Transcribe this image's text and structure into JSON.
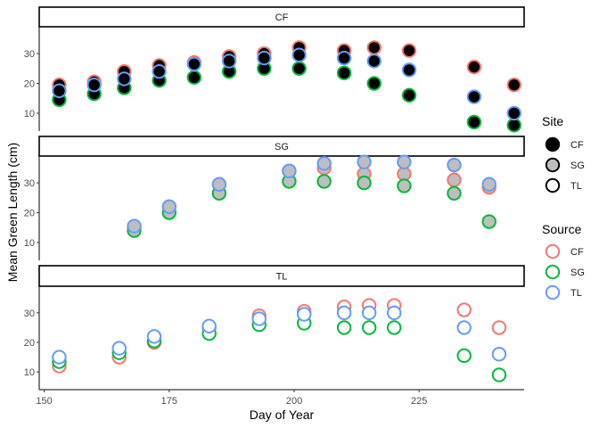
{
  "chart_data": {
    "type": "scatter",
    "title": "",
    "xlabel": "Day of Year",
    "ylabel": "Mean Green Length (cm)",
    "xlim": [
      149,
      246
    ],
    "x_ticks": [
      150,
      175,
      200,
      225
    ],
    "ylim": [
      4,
      39
    ],
    "y_ticks": [
      10,
      20,
      30
    ],
    "grid": false,
    "colors": {
      "CF": "#F8766D",
      "SG": "#00BA38",
      "TL": "#619CFF",
      "fill_CF": "#000000",
      "fill_SG": "#BEBEBE",
      "fill_TL": "#FFFFFF"
    },
    "legend_site": {
      "title": "Site",
      "items": [
        {
          "label": "CF",
          "fill": "#000000"
        },
        {
          "label": "SG",
          "fill": "#BEBEBE"
        },
        {
          "label": "TL",
          "fill": "#FFFFFF"
        }
      ]
    },
    "legend_source": {
      "title": "Source",
      "items": [
        {
          "label": "CF",
          "color": "#F8766D"
        },
        {
          "label": "SG",
          "color": "#00BA38"
        },
        {
          "label": "TL",
          "color": "#619CFF"
        }
      ]
    },
    "panels": [
      {
        "site": "CF",
        "strip_label": "CF",
        "x": [
          153,
          160,
          166,
          173,
          180,
          187,
          194,
          201,
          210,
          216,
          223,
          236,
          244
        ],
        "series": [
          {
            "source": "CF",
            "values": [
              19.5,
              20.5,
              24,
              26,
              27,
              29,
              30,
              32,
              31,
              32,
              31,
              25.5,
              19.5
            ]
          },
          {
            "source": "SG",
            "values": [
              14.5,
              16.5,
              18.5,
              21,
              22,
              24,
              25,
              25,
              23.5,
              20,
              16,
              7,
              6
            ]
          },
          {
            "source": "TL",
            "values": [
              17.5,
              19.5,
              21.5,
              24,
              26.5,
              27.5,
              28.5,
              29.5,
              28.5,
              27.5,
              24.5,
              15.5,
              10
            ]
          }
        ]
      },
      {
        "site": "SG",
        "strip_label": "SG",
        "x": [
          168,
          175,
          185,
          199,
          206,
          214,
          222,
          232,
          239
        ],
        "series": [
          {
            "source": "CF",
            "values": [
              15,
              22,
              29.5,
              34,
              35,
              33,
              33,
              31,
              28.5
            ]
          },
          {
            "source": "SG",
            "values": [
              14,
              20,
              26.5,
              30.5,
              30.5,
              30,
              29,
              26.5,
              17
            ]
          },
          {
            "source": "TL",
            "values": [
              15.5,
              22,
              29.5,
              34,
              36.5,
              37,
              37,
              36,
              29.5
            ]
          }
        ]
      },
      {
        "site": "TL",
        "strip_label": "TL",
        "x": [
          153,
          165,
          172,
          183,
          193,
          202,
          210,
          215,
          220,
          234,
          241
        ],
        "series": [
          {
            "source": "CF",
            "values": [
              12,
              15,
              20,
              25,
              29,
              30.5,
              32,
              32.5,
              32.5,
              31,
              25
            ]
          },
          {
            "source": "SG",
            "values": [
              13.5,
              16.5,
              20.5,
              23,
              26,
              26.5,
              25,
              25,
              25,
              15.5,
              9
            ]
          },
          {
            "source": "TL",
            "values": [
              15,
              18,
              22,
              25.5,
              28,
              29.5,
              30,
              30,
              30,
              25,
              16
            ]
          }
        ]
      }
    ]
  }
}
